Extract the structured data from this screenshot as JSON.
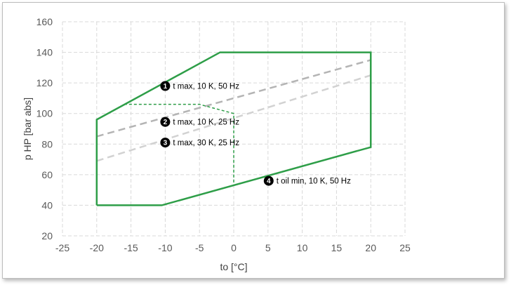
{
  "chart_data": {
    "type": "line",
    "xlabel": "to [°C]",
    "ylabel": "p HP [bar abs]",
    "xlim": [
      -25,
      25
    ],
    "ylim": [
      20,
      160
    ],
    "xticks": [
      -25,
      -20,
      -15,
      -10,
      -5,
      0,
      5,
      10,
      15,
      20,
      25
    ],
    "yticks": [
      20,
      40,
      60,
      80,
      100,
      120,
      140,
      160
    ],
    "grid": true,
    "colors": {
      "envelope": "#2e9e48",
      "gray_dark": "#b4b4b4",
      "gray_light": "#d2d2d2",
      "grid": "#d9d9d9"
    },
    "series": [
      {
        "style": "solid-green",
        "x": [
          -20,
          -20,
          -2,
          20,
          20,
          -10.5,
          -20
        ],
        "y": [
          40,
          96,
          140,
          140,
          78,
          40,
          40
        ]
      },
      {
        "style": "dashed-green",
        "x": [
          -16,
          -5,
          0,
          0
        ],
        "y": [
          106,
          106,
          100,
          53
        ]
      },
      {
        "style": "dashed-gray-dark",
        "x": [
          -20,
          20
        ],
        "y": [
          85,
          135
        ]
      },
      {
        "style": "dashed-gray-light",
        "x": [
          -20,
          20
        ],
        "y": [
          69,
          125
        ]
      }
    ],
    "annotations": [
      {
        "num": "1",
        "text": "t max, 10 K, 50 Hz",
        "x": -10,
        "y": 118
      },
      {
        "num": "2",
        "text": "t max, 10 K, 25 Hz",
        "x": -10,
        "y": 94.5
      },
      {
        "num": "3",
        "text": "t max, 30 K, 25 Hz",
        "x": -10,
        "y": 81
      },
      {
        "num": "4",
        "text": "t oil min, 10 K, 50 Hz",
        "x": 5.1,
        "y": 56
      }
    ]
  }
}
